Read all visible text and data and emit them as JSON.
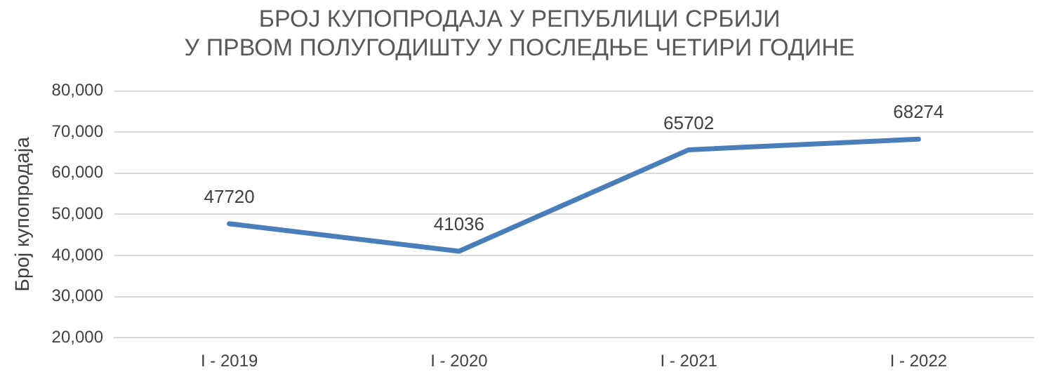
{
  "chart_data": {
    "type": "line",
    "title": "БРОЈ КУПОПРОДАЈА У РЕПУБЛИЦИ СРБИЈИ\nУ ПРВОМ ПОЛУГОДИШТУ У ПОСЛЕДЊЕ ЧЕТИРИ ГОДИНЕ",
    "ylabel": "Број купопродаја",
    "categories": [
      "I - 2019",
      "I - 2020",
      "I - 2021",
      "I - 2022"
    ],
    "series": [
      {
        "color": "#4a7ebb",
        "values": [
          47720,
          41036,
          65702,
          68274
        ]
      }
    ],
    "ylim": [
      20000,
      80000
    ],
    "yticks": [
      {
        "value": 20000,
        "label": "20,000"
      },
      {
        "value": 30000,
        "label": "30,000"
      },
      {
        "value": 40000,
        "label": "40,000"
      },
      {
        "value": 50000,
        "label": "50,000"
      },
      {
        "value": 60000,
        "label": "60,000"
      },
      {
        "value": 70000,
        "label": "70,000"
      },
      {
        "value": 80000,
        "label": "80,000"
      }
    ],
    "grid": "y",
    "data_labels": true,
    "marker": "none",
    "line_style": "solid",
    "legend": false
  }
}
